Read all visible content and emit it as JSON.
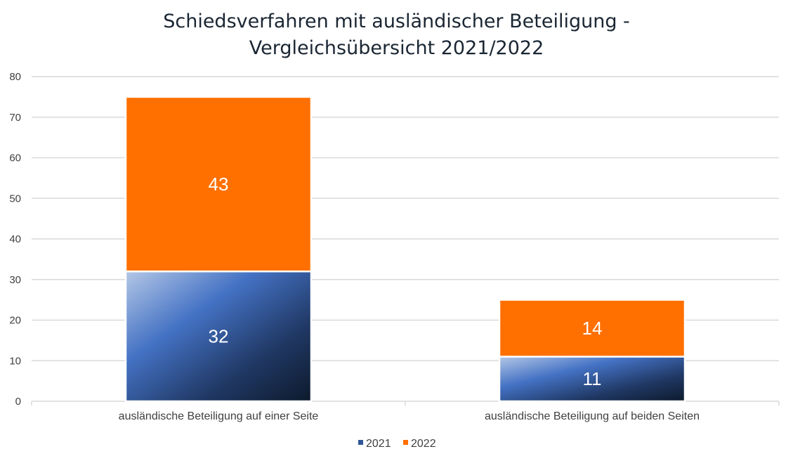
{
  "chart_data": {
    "type": "bar",
    "stacked": true,
    "title_lines": [
      "Schiedsverfahren mit ausländischer Beteiligung -",
      "Vergleichsübersicht 2021/2022"
    ],
    "categories": [
      "ausländische Beteiligung auf einer Seite",
      "ausländische Beteiligung auf beiden Seiten"
    ],
    "series": [
      {
        "name": "2021",
        "values": [
          32,
          11
        ],
        "color": "#2f5597"
      },
      {
        "name": "2022",
        "values": [
          43,
          14
        ],
        "color": "#ff7000"
      }
    ],
    "y_ticks": [
      "0",
      "10",
      "20",
      "30",
      "40",
      "50",
      "60",
      "70",
      "80"
    ],
    "ylim": [
      0,
      80
    ],
    "grid": true,
    "data_labels": true,
    "legend_position": "bottom"
  }
}
